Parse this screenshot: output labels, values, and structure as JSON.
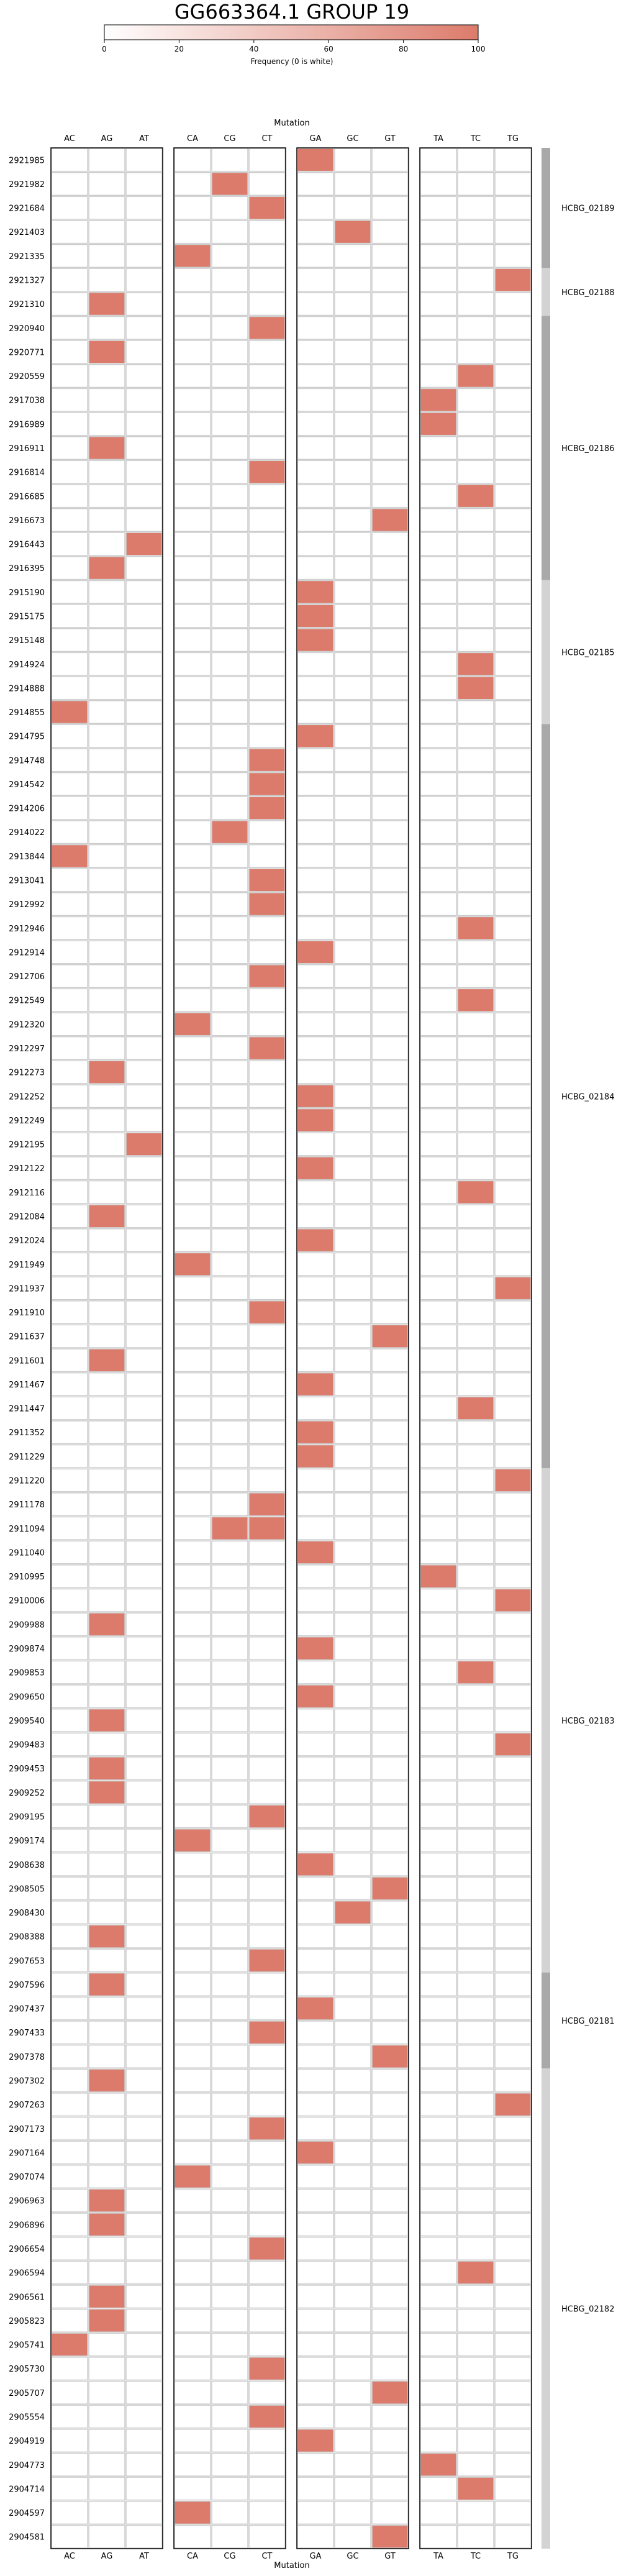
{
  "chart_data": {
    "type": "heatmap",
    "title": "GG663364.1 GROUP 19",
    "colorbar": {
      "label": "Frequency (0 is white)",
      "ticks": [
        0,
        20,
        40,
        60,
        80,
        100
      ],
      "range": [
        0,
        100
      ],
      "color_low": "#ffffff",
      "color_high": "#dc7b6b"
    },
    "xlabel_top": "Mutation",
    "xlabel_bottom": "Mutation",
    "column_groups": [
      [
        "AC",
        "AG",
        "AT"
      ],
      [
        "CA",
        "CG",
        "CT"
      ],
      [
        "GA",
        "GC",
        "GT"
      ],
      [
        "TA",
        "TC",
        "TG"
      ]
    ],
    "rows": [
      "2921985",
      "2921982",
      "2921684",
      "2921403",
      "2921335",
      "2921327",
      "2921310",
      "2920940",
      "2920771",
      "2920559",
      "2917038",
      "2916989",
      "2916911",
      "2916814",
      "2916685",
      "2916673",
      "2916443",
      "2916395",
      "2915190",
      "2915175",
      "2915148",
      "2914924",
      "2914888",
      "2914855",
      "2914795",
      "2914748",
      "2914542",
      "2914206",
      "2914022",
      "2913844",
      "2913041",
      "2912992",
      "2912946",
      "2912914",
      "2912706",
      "2912549",
      "2912320",
      "2912297",
      "2912273",
      "2912252",
      "2912249",
      "2912195",
      "2912122",
      "2912116",
      "2912084",
      "2912024",
      "2911949",
      "2911937",
      "2911910",
      "2911637",
      "2911601",
      "2911467",
      "2911447",
      "2911352",
      "2911229",
      "2911220",
      "2911178",
      "2911094",
      "2911040",
      "2910995",
      "2910006",
      "2909988",
      "2909874",
      "2909853",
      "2909650",
      "2909540",
      "2909483",
      "2909453",
      "2909252",
      "2909195",
      "2909174",
      "2908638",
      "2908505",
      "2908430",
      "2908388",
      "2907653",
      "2907596",
      "2907437",
      "2907433",
      "2907378",
      "2907302",
      "2907263",
      "2907173",
      "2907164",
      "2907074",
      "2906963",
      "2906896",
      "2906654",
      "2906594",
      "2906561",
      "2905823",
      "2905741",
      "2905730",
      "2905707",
      "2905554",
      "2904919",
      "2904773",
      "2904714",
      "2904597",
      "2904581"
    ],
    "filled_value": 100,
    "filled_cells": [
      [
        "GA"
      ],
      [
        "CG"
      ],
      [
        "CT"
      ],
      [
        "GC"
      ],
      [
        "CA"
      ],
      [
        "TG"
      ],
      [
        "AG"
      ],
      [
        "CT"
      ],
      [
        "AG"
      ],
      [
        "TC"
      ],
      [
        "TA"
      ],
      [
        "TA"
      ],
      [
        "AG"
      ],
      [
        "CT"
      ],
      [
        "TC"
      ],
      [
        "GT"
      ],
      [
        "AT"
      ],
      [
        "AG"
      ],
      [
        "GA"
      ],
      [
        "GA"
      ],
      [
        "GA"
      ],
      [
        "TC"
      ],
      [
        "TC"
      ],
      [
        "AC"
      ],
      [
        "GA"
      ],
      [
        "CT"
      ],
      [
        "CT"
      ],
      [
        "CT"
      ],
      [
        "CG"
      ],
      [
        "AC"
      ],
      [
        "CT"
      ],
      [
        "CT"
      ],
      [
        "TC"
      ],
      [
        "GA"
      ],
      [
        "CT"
      ],
      [
        "TC"
      ],
      [
        "CA"
      ],
      [
        "CT"
      ],
      [
        "AG"
      ],
      [
        "GA"
      ],
      [
        "GA"
      ],
      [
        "AT"
      ],
      [
        "GA"
      ],
      [
        "TC"
      ],
      [
        "AG"
      ],
      [
        "GA"
      ],
      [
        "CA"
      ],
      [
        "TG"
      ],
      [
        "CT"
      ],
      [
        "GT"
      ],
      [
        "AG"
      ],
      [
        "GA"
      ],
      [
        "TC"
      ],
      [
        "GA"
      ],
      [
        "GA"
      ],
      [
        "TG"
      ],
      [
        "CT"
      ],
      [
        "CG",
        "CT"
      ],
      [
        "GA"
      ],
      [
        "TA"
      ],
      [
        "TG"
      ],
      [
        "AG"
      ],
      [
        "GA"
      ],
      [
        "TC"
      ],
      [
        "GA"
      ],
      [
        "AG"
      ],
      [
        "TG"
      ],
      [
        "AG"
      ],
      [
        "AG"
      ],
      [
        "CT"
      ],
      [
        "CA"
      ],
      [
        "GA"
      ],
      [
        "GT"
      ],
      [
        "GC"
      ],
      [
        "AG"
      ],
      [
        "CT"
      ],
      [
        "AG"
      ],
      [
        "GA"
      ],
      [
        "CT"
      ],
      [
        "GT"
      ],
      [
        "AG"
      ],
      [
        "TG"
      ],
      [
        "CT"
      ],
      [
        "GA"
      ],
      [
        "CA"
      ],
      [
        "AG"
      ],
      [
        "AG"
      ],
      [
        "CT"
      ],
      [
        "TC"
      ],
      [
        "AG"
      ],
      [
        "AG"
      ],
      [
        "AC"
      ],
      [
        "CT"
      ],
      [
        "GT"
      ],
      [
        "CT"
      ],
      [
        "GA"
      ],
      [
        "TA"
      ],
      [
        "TC"
      ],
      [
        "CA"
      ],
      [
        "GT"
      ]
    ],
    "gene_blocks": [
      {
        "name": "HCBG_02189",
        "rows": 5,
        "shade": "#a9a9a9"
      },
      {
        "name": "HCBG_02188",
        "rows": 2,
        "shade": "#d3d3d3"
      },
      {
        "name": "HCBG_02186",
        "rows": 11,
        "shade": "#a9a9a9"
      },
      {
        "name": "HCBG_02185",
        "rows": 6,
        "shade": "#d3d3d3"
      },
      {
        "name": "HCBG_02184",
        "rows": 31,
        "shade": "#a9a9a9"
      },
      {
        "name": "HCBG_02183",
        "rows": 21,
        "shade": "#d3d3d3"
      },
      {
        "name": "HCBG_02181",
        "rows": 4,
        "shade": "#a9a9a9"
      },
      {
        "name": "HCBG_02182",
        "rows": 20,
        "shade": "#d3d3d3"
      }
    ]
  }
}
